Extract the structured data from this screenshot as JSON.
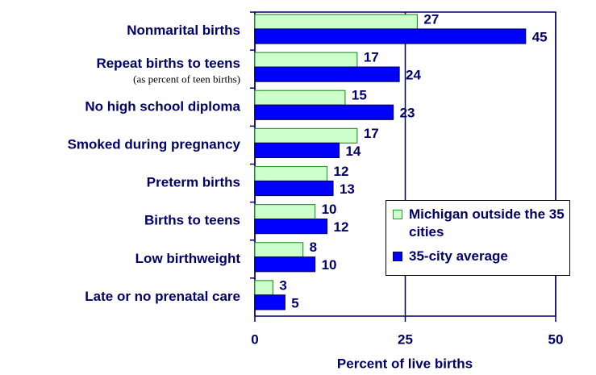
{
  "chart_data": {
    "type": "barh",
    "categories": [
      "Nonmarital births",
      "Repeat births to teens",
      "No high school diploma",
      "Smoked during pregnancy",
      "Preterm births",
      "Births to teens",
      "Low birthweight",
      "Late or no prenatal care"
    ],
    "category_note": "(as percent of teen births)",
    "series": [
      {
        "name": "Michigan outside the 35 cities",
        "color": "#ccffcc",
        "edge": "#339933",
        "values": [
          27,
          17,
          15,
          17,
          12,
          10,
          8,
          3
        ]
      },
      {
        "name": "35-city average",
        "color": "#0000ff",
        "edge": "#000066",
        "values": [
          45,
          24,
          23,
          14,
          13,
          12,
          10,
          5
        ]
      }
    ],
    "xlabel": "Percent of live births",
    "xlim": [
      0,
      50
    ],
    "xticks": [
      0,
      25,
      50
    ],
    "grid": true,
    "legend": "lower right"
  }
}
